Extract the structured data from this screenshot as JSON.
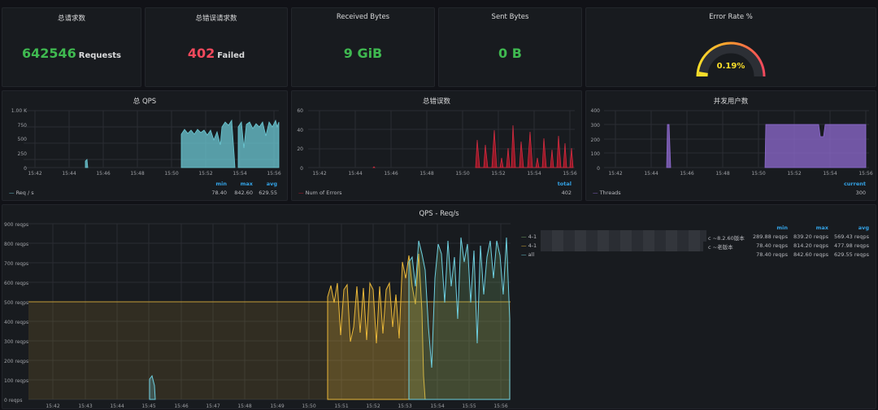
{
  "stats": [
    {
      "title": "总请求数",
      "value": "642546",
      "unit": "Requests",
      "color": "#3fb950"
    },
    {
      "title": "总错误请求数",
      "value": "402",
      "unit": "Failed",
      "color": "#f2495c"
    },
    {
      "title": "Received Bytes",
      "value": "9 GiB",
      "unit": "",
      "color": "#3fb950"
    },
    {
      "title": "Sent Bytes",
      "value": "0 B",
      "unit": "",
      "color": "#3fb950"
    }
  ],
  "gauge": {
    "title": "Error Rate %",
    "value": "0.19%",
    "level": 0.0019
  },
  "qps_small": {
    "title": "总 QPS",
    "yticks": [
      "0",
      "250",
      "500",
      "750",
      "1.00 K"
    ],
    "xticks": [
      "15:42",
      "15:44",
      "15:46",
      "15:48",
      "15:50",
      "15:52",
      "15:54",
      "15:56"
    ],
    "legend": {
      "headers": [
        "min",
        "max",
        "avg"
      ],
      "name": "Req / s",
      "values": [
        "78.40",
        "842.60",
        "629.55"
      ]
    }
  },
  "errors_small": {
    "title": "总错误数",
    "yticks": [
      "0",
      "20",
      "40",
      "60"
    ],
    "xticks": [
      "15:42",
      "15:44",
      "15:46",
      "15:48",
      "15:50",
      "15:52",
      "15:54",
      "15:56"
    ],
    "legend": {
      "headers": [
        "total"
      ],
      "name": "Num of Errors",
      "values": [
        "402"
      ]
    }
  },
  "users_small": {
    "title": "并发用户数",
    "yticks": [
      "0",
      "100",
      "200",
      "300",
      "400"
    ],
    "xticks": [
      "15:42",
      "15:44",
      "15:46",
      "15:48",
      "15:50",
      "15:52",
      "15:54",
      "15:56"
    ],
    "legend": {
      "headers": [
        "current"
      ],
      "name": "Threads",
      "values": [
        "300"
      ]
    }
  },
  "qps_big": {
    "title": "QPS - Req/s",
    "yticks": [
      "0 reqps",
      "100 reqps",
      "200 reqps",
      "300 reqps",
      "400 reqps",
      "500 reqps",
      "600 reqps",
      "700 reqps",
      "800 reqps",
      "900 reqps"
    ],
    "xticks": [
      "15:42",
      "15:43",
      "15:44",
      "15:45",
      "15:46",
      "15:47",
      "15:48",
      "15:49",
      "15:50",
      "15:51",
      "15:52",
      "15:53",
      "15:54",
      "15:55",
      "15:56"
    ],
    "legend": {
      "headers": [
        "min",
        "max",
        "avg"
      ],
      "rows": [
        {
          "name": "4-1",
          "suffix": "c ~8.2.60版本",
          "values": [
            "289.88 reqps",
            "839.20 reqps",
            "569.43 reqps"
          ],
          "color": "#7eb26d"
        },
        {
          "name": "4-1",
          "suffix": "c ~老版本",
          "values": [
            "78.40 reqps",
            "814.20 reqps",
            "477.98 reqps"
          ],
          "color": "#eab839"
        },
        {
          "name": "all",
          "suffix": "",
          "values": [
            "78.40 reqps",
            "842.60 reqps",
            "629.55 reqps"
          ],
          "color": "#6ed0e0"
        }
      ]
    }
  },
  "chart_data": [
    {
      "type": "line",
      "title": "总 QPS",
      "series": [
        {
          "name": "Req / s",
          "color": "#6ccad5"
        }
      ],
      "ylim": [
        0,
        1000
      ]
    },
    {
      "type": "bar",
      "title": "总错误数",
      "series": [
        {
          "name": "Num of Errors",
          "color": "#c4162a"
        }
      ],
      "ylim": [
        0,
        60
      ]
    },
    {
      "type": "area",
      "title": "并发用户数",
      "series": [
        {
          "name": "Threads",
          "color": "#8f6bd1"
        }
      ],
      "ylim": [
        0,
        400
      ]
    },
    {
      "type": "line",
      "title": "QPS - Req/s",
      "ylim": [
        0,
        900
      ],
      "threshold": 500
    }
  ]
}
